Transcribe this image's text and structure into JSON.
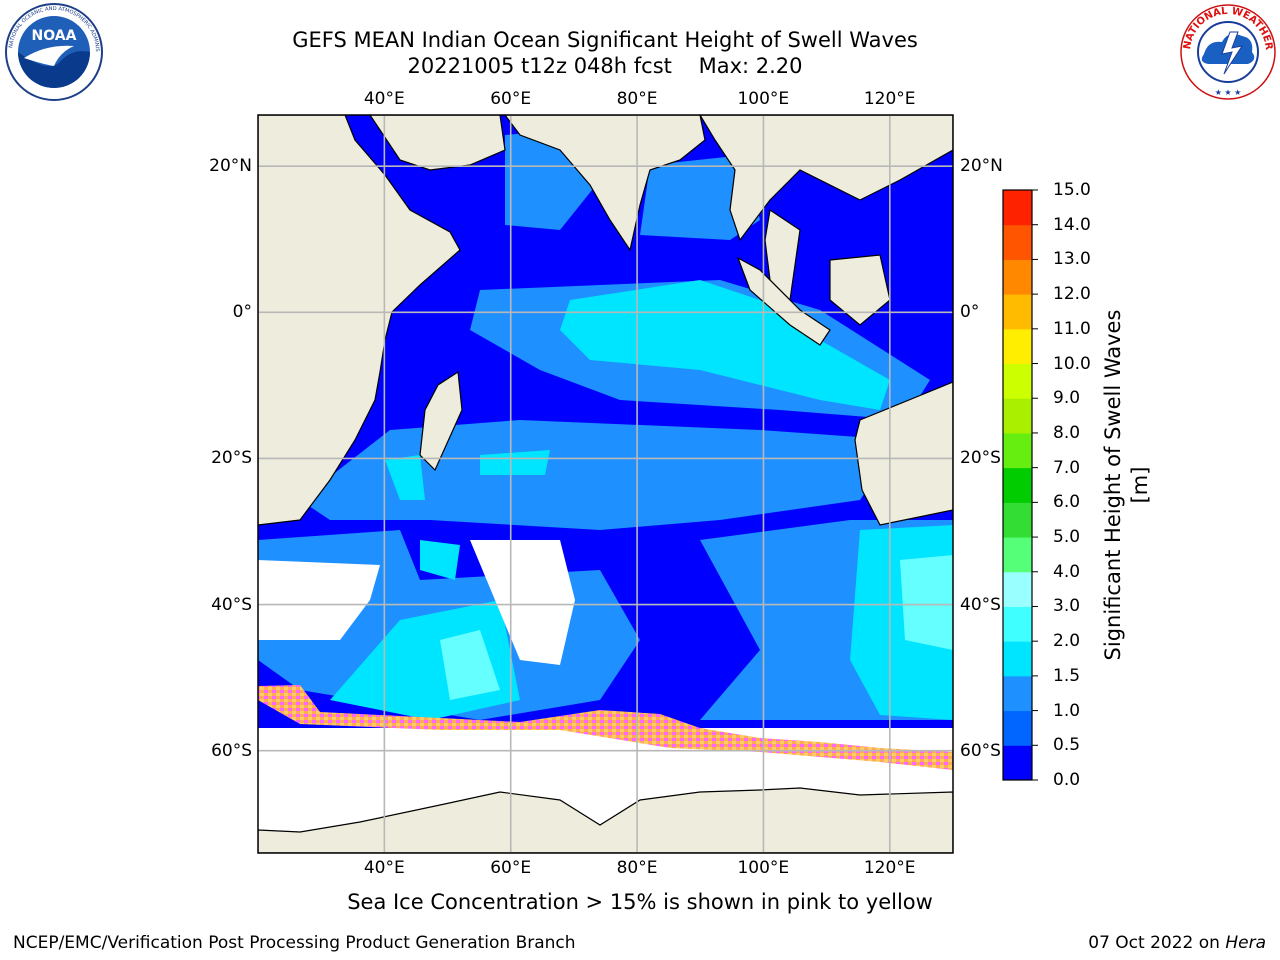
{
  "header": {
    "title_line1": "GEFS MEAN Indian Ocean Significant Height of Swell Waves",
    "title_line2": "20221005 t12z 048h fcst    Max: 2.20"
  },
  "logos": {
    "left": {
      "name": "noaa-logo",
      "text": "NOAA",
      "ring_text": "NATIONAL OCEANIC AND ATMOSPHERIC ADMINISTRATION · U.S. DEPARTMENT OF COMMERCE"
    },
    "right": {
      "name": "nws-logo",
      "ring_text": "NATIONAL WEATHER SERVICE"
    }
  },
  "map": {
    "projection": "Equirectangular",
    "lon_range": [
      20,
      130
    ],
    "lat_range": [
      -74,
      27
    ],
    "longitude_ticks": [
      "40°E",
      "60°E",
      "80°E",
      "100°E",
      "120°E"
    ],
    "latitude_ticks_left": [
      "20°N",
      "0°",
      "20°S",
      "40°S",
      "60°S"
    ],
    "latitude_ticks_right": [
      "20°N",
      "0°",
      "20°S",
      "40°S",
      "60°S"
    ],
    "gridlines": true,
    "land_color": "#eeecdc",
    "coastline_color": "#000000",
    "no_data_color": "#ffffff",
    "sea_ice_colors": [
      "#ff66ff",
      "#ff8844",
      "#ffaa55",
      "#ffcc66"
    ]
  },
  "colorbar": {
    "label": "Significant Height of Swell Waves [m]",
    "ticks": [
      "0.0",
      "0.5",
      "1.0",
      "1.5",
      "2.0",
      "3.0",
      "4.0",
      "5.0",
      "6.0",
      "7.0",
      "8.0",
      "9.0",
      "10.0",
      "11.0",
      "12.0",
      "13.0",
      "14.0",
      "15.0"
    ],
    "colors": [
      "#0000ff",
      "#0066ff",
      "#1e90ff",
      "#00e5ff",
      "#40ffff",
      "#99ffff",
      "#55ff77",
      "#33dd33",
      "#00cc00",
      "#66ee11",
      "#aaee00",
      "#ccff00",
      "#ffee00",
      "#ffbb00",
      "#ff8800",
      "#ff5500",
      "#ff2200",
      "#ff0000"
    ]
  },
  "footer": {
    "note": "Sea Ice Concentration > 15% is shown in pink to yellow",
    "credit": "NCEP/EMC/Verification Post Processing Product Generation Branch",
    "date": "07 Oct 2022 on",
    "system": "Hera"
  }
}
